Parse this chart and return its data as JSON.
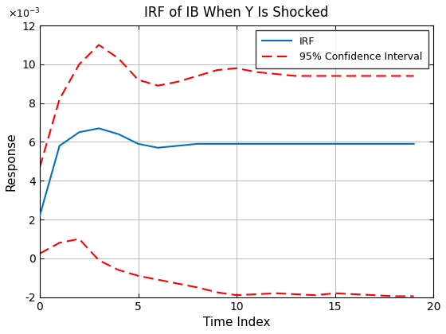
{
  "title": "IRF of IB When Y Is Shocked",
  "xlabel": "Time Index",
  "ylabel": "Response",
  "xlim": [
    0,
    20
  ],
  "ylim": [
    -0.002,
    0.012
  ],
  "yticks": [
    -0.002,
    0.0,
    0.002,
    0.004,
    0.006,
    0.008,
    0.01,
    0.012
  ],
  "xticks": [
    0,
    5,
    10,
    15,
    20
  ],
  "irf_color": "#0072BD",
  "ci_color": "#FF0000",
  "irf_x": [
    0,
    1,
    2,
    3,
    4,
    5,
    6,
    7,
    8,
    9,
    10,
    11,
    12,
    13,
    14,
    15,
    16,
    17,
    18,
    19
  ],
  "irf_y": [
    0.0022,
    0.0058,
    0.0065,
    0.0067,
    0.0064,
    0.0059,
    0.0057,
    0.0058,
    0.0059,
    0.0059,
    0.0059,
    0.0059,
    0.0059,
    0.0059,
    0.0059,
    0.0059,
    0.0059,
    0.0059,
    0.0059,
    0.0059
  ],
  "upper_x": [
    0,
    1,
    2,
    3,
    4,
    5,
    6,
    7,
    8,
    9,
    10,
    11,
    12,
    13,
    14,
    15,
    16,
    17,
    18,
    19
  ],
  "upper_y": [
    0.0047,
    0.0082,
    0.01,
    0.011,
    0.0103,
    0.0092,
    0.0089,
    0.0091,
    0.0094,
    0.0097,
    0.0098,
    0.0096,
    0.0095,
    0.0094,
    0.0094,
    0.0094,
    0.0094,
    0.0094,
    0.0094,
    0.0094
  ],
  "lower_x": [
    0,
    1,
    2,
    3,
    4,
    5,
    6,
    7,
    8,
    9,
    10,
    11,
    12,
    13,
    14,
    15,
    16,
    17,
    18,
    19
  ],
  "lower_y": [
    0.00025,
    0.0008,
    0.001,
    -0.0001,
    -0.0006,
    -0.0009,
    -0.0011,
    -0.0013,
    -0.0015,
    -0.00175,
    -0.0019,
    -0.00185,
    -0.0018,
    -0.00185,
    -0.0019,
    -0.0018,
    -0.00185,
    -0.0019,
    -0.00195,
    -0.00195
  ],
  "legend_irf_label": "IRF",
  "legend_ci_label": "95% Confidence Interval",
  "background_color": "#ffffff",
  "grid_color": "#b0b0b0"
}
